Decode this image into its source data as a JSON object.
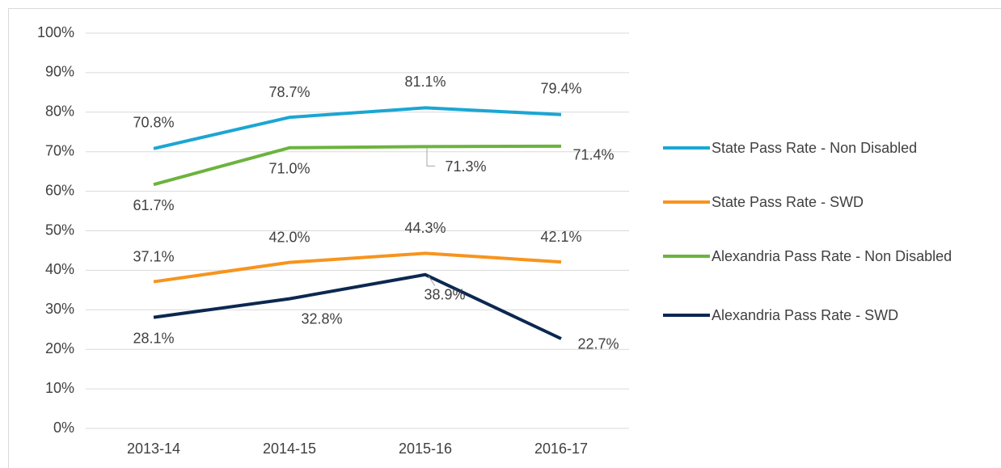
{
  "chart_data": {
    "type": "line",
    "categories": [
      "2013-14",
      "2014-15",
      "2015-16",
      "2016-17"
    ],
    "series": [
      {
        "name": "State Pass Rate - Non Disabled",
        "color": "#1ba6d3",
        "values": [
          70.8,
          78.7,
          81.1,
          79.4
        ],
        "value_labels": [
          "70.8%",
          "78.7%",
          "81.1%",
          "79.4%"
        ]
      },
      {
        "name": "State Pass Rate - SWD",
        "color": "#f7941e",
        "values": [
          37.1,
          42.0,
          44.3,
          42.1
        ],
        "value_labels": [
          "37.1%",
          "42.0%",
          "44.3%",
          "42.1%"
        ]
      },
      {
        "name": "Alexandria Pass Rate - Non Disabled",
        "color": "#6cb33f",
        "values": [
          61.7,
          71.0,
          71.3,
          71.4
        ],
        "value_labels": [
          "61.7%",
          "71.0%",
          "71.3%",
          "71.4%"
        ]
      },
      {
        "name": "Alexandria Pass Rate - SWD",
        "color": "#0c2850",
        "values": [
          28.1,
          32.8,
          38.9,
          22.7
        ],
        "value_labels": [
          "28.1%",
          "32.8%",
          "38.9%",
          "22.7%"
        ]
      }
    ],
    "ylim": [
      0,
      100
    ],
    "yticks": [
      {
        "value": 0,
        "label": "0%"
      },
      {
        "value": 10,
        "label": "10%"
      },
      {
        "value": 20,
        "label": "20%"
      },
      {
        "value": 30,
        "label": "30%"
      },
      {
        "value": 40,
        "label": "40%"
      },
      {
        "value": 50,
        "label": "50%"
      },
      {
        "value": 60,
        "label": "60%"
      },
      {
        "value": 70,
        "label": "70%"
      },
      {
        "value": 80,
        "label": "80%"
      },
      {
        "value": 90,
        "label": "90%"
      },
      {
        "value": 100,
        "label": "100%"
      }
    ],
    "grid": true,
    "legend": "right"
  }
}
